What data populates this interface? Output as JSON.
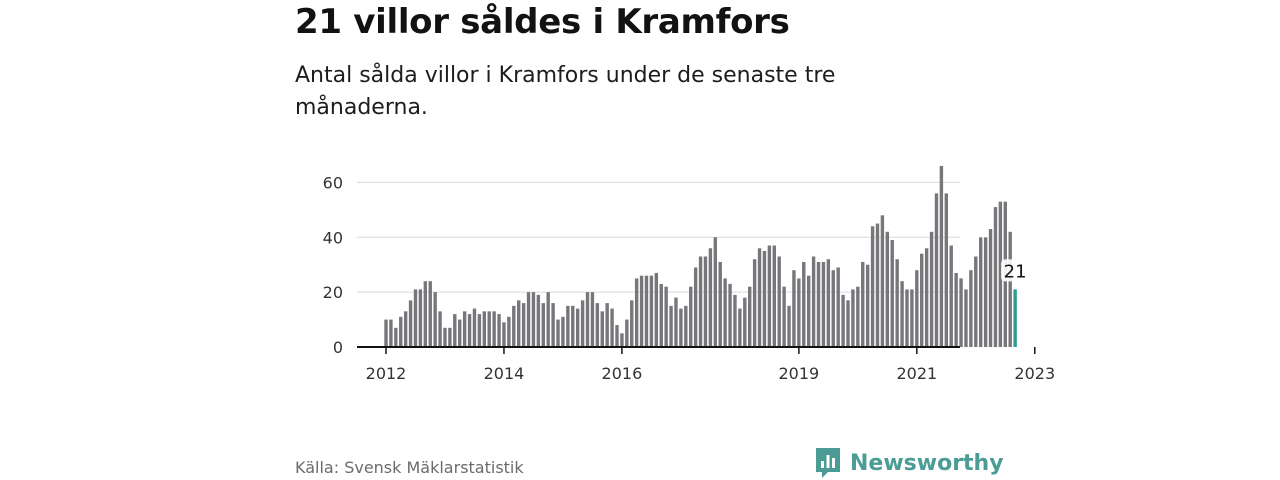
{
  "title": "21 villor såldes i Kramfors",
  "subtitle": "Antal sålda villor i Kramfors under de senaste tre månaderna.",
  "source": "Källa: Svensk Mäklarstatistik",
  "brand": {
    "name": "Newsworthy",
    "icon": "bar-chart-speech-icon",
    "color": "#4a9c95"
  },
  "colors": {
    "bar": "#77767b",
    "highlight": "#2a9d8f",
    "grid": "#d9d9d9",
    "axis": "#121212"
  },
  "chart_data": {
    "type": "bar",
    "title": "21 villor såldes i Kramfors",
    "xlabel": "",
    "ylabel": "",
    "ylim": [
      0,
      70
    ],
    "yticks": [
      0,
      20,
      40,
      60
    ],
    "xtick_labels": [
      "2012",
      "2014",
      "2016",
      "2019",
      "2021",
      "2023"
    ],
    "grid": true,
    "start_period": "2012-01",
    "frequency": "monthly",
    "values": [
      10,
      10,
      7,
      11,
      13,
      17,
      21,
      21,
      24,
      24,
      20,
      13,
      7,
      7,
      12,
      10,
      13,
      12,
      14,
      12,
      13,
      13,
      13,
      12,
      9,
      11,
      15,
      17,
      16,
      20,
      20,
      19,
      16,
      20,
      16,
      10,
      11,
      15,
      15,
      14,
      17,
      20,
      20,
      16,
      13,
      16,
      14,
      8,
      5,
      10,
      17,
      25,
      26,
      26,
      26,
      27,
      23,
      22,
      15,
      18,
      14,
      15,
      22,
      29,
      33,
      33,
      36,
      40,
      31,
      25,
      23,
      19,
      14,
      18,
      22,
      32,
      36,
      35,
      37,
      37,
      33,
      22,
      15,
      28,
      25,
      31,
      26,
      33,
      31,
      31,
      32,
      28,
      29,
      19,
      17,
      21,
      22,
      31,
      30,
      44,
      45,
      48,
      42,
      39,
      32,
      24,
      21,
      21,
      28,
      34,
      36,
      42,
      56,
      66,
      56,
      37,
      27,
      25,
      21,
      28,
      33,
      40,
      40,
      43,
      51,
      53,
      53,
      42,
      21
    ],
    "highlight_last": true,
    "last_value_label": "21"
  }
}
